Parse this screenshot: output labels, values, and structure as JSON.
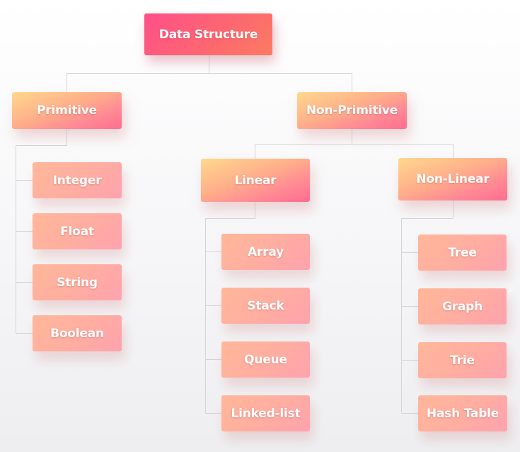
{
  "diagram": {
    "root": "Data Structure",
    "primitive": {
      "label": "Primitive",
      "items": [
        "Integer",
        "Float",
        "String",
        "Boolean"
      ]
    },
    "non_primitive": {
      "label": "Non-Primitive",
      "linear": {
        "label": "Linear",
        "items": [
          "Array",
          "Stack",
          "Queue",
          "Linked-list"
        ]
      },
      "non_linear": {
        "label": "Non-Linear",
        "items": [
          "Tree",
          "Graph",
          "Trie",
          "Hash Table"
        ]
      }
    }
  }
}
